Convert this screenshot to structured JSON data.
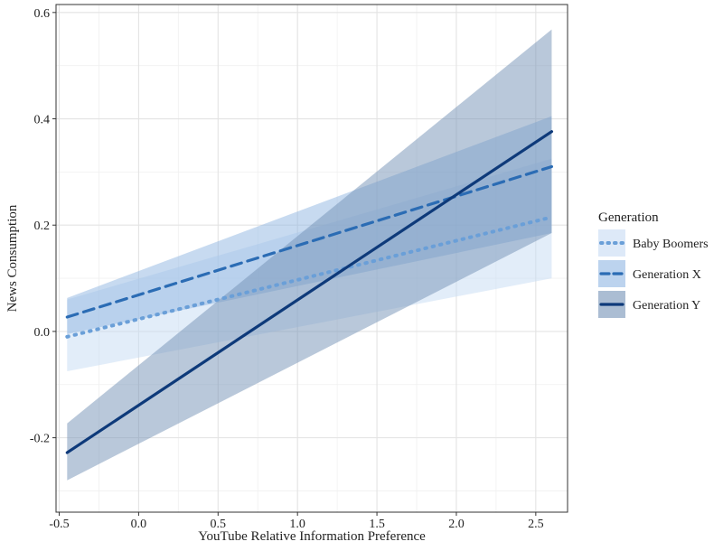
{
  "chart_data": {
    "type": "line",
    "title": "",
    "xlabel": "YouTube Relative Information Preference",
    "ylabel": "News Consumption",
    "xlim": [
      -0.52,
      2.7
    ],
    "ylim": [
      -0.34,
      0.615
    ],
    "x_ticks": [
      -0.5,
      0.0,
      0.5,
      1.0,
      1.5,
      2.0,
      2.5
    ],
    "x_tick_labels": [
      "-0.5",
      "0.0",
      "0.5",
      "1.0",
      "1.5",
      "2.0",
      "2.5"
    ],
    "y_ticks": [
      -0.2,
      0.0,
      0.2,
      0.4,
      0.6
    ],
    "y_tick_labels": [
      "-0.2",
      "0.0",
      "0.2",
      "0.4",
      "0.6"
    ],
    "grid": true,
    "legend": {
      "title": "Generation",
      "position": "right"
    },
    "series": [
      {
        "name": "Baby Boomers",
        "line_style": "dotted",
        "color": "#6a9fd8",
        "band_color": "#c6dbf3",
        "x": [
          -0.45,
          2.6
        ],
        "y": [
          -0.01,
          0.215
        ],
        "ci_lower": [
          -0.075,
          0.1
        ],
        "ci_upper": [
          0.06,
          0.325
        ]
      },
      {
        "name": "Generation X",
        "line_style": "dashed",
        "color": "#2b6cb4",
        "band_color": "#8fb6e2",
        "x": [
          -0.45,
          2.6
        ],
        "y": [
          0.027,
          0.31
        ],
        "ci_lower": [
          -0.005,
          0.185
        ],
        "ci_upper": [
          0.063,
          0.405
        ]
      },
      {
        "name": "Generation Y",
        "line_style": "solid",
        "color": "#0e3a7a",
        "band_color": "#7391b6",
        "x": [
          -0.45,
          2.6
        ],
        "y": [
          -0.228,
          0.376
        ],
        "ci_lower": [
          -0.28,
          0.185
        ],
        "ci_upper": [
          -0.173,
          0.568
        ]
      }
    ]
  }
}
